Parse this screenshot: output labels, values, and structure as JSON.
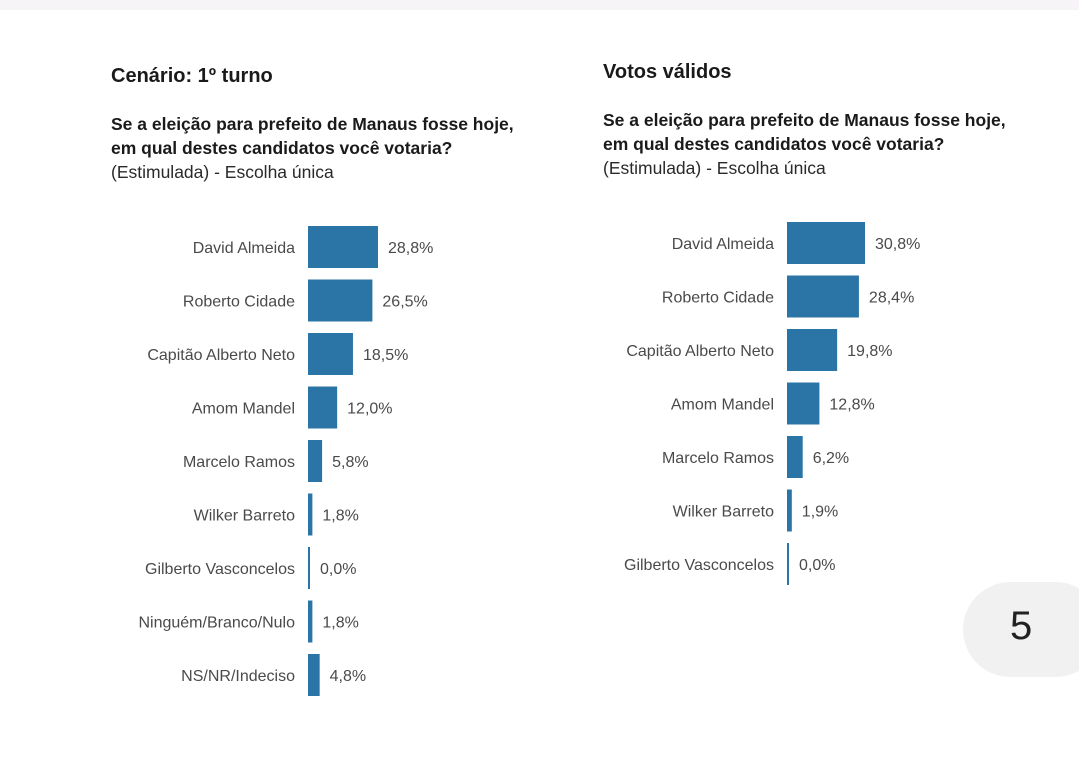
{
  "left": {
    "heading": "Cenário: 1º turno",
    "question_line1": "Se a eleição para prefeito de Manaus fosse hoje,",
    "question_line2": "em qual destes candidatos você votaria?",
    "subtitle": "(Estimulada) - Escolha única"
  },
  "right": {
    "heading": "Votos válidos",
    "question_line1": "Se a eleição para prefeito de Manaus fosse hoje,",
    "question_line2": "em qual destes candidatos você votaria?",
    "subtitle": "(Estimulada) - Escolha única"
  },
  "page_number": "5",
  "colors": {
    "bar": "#2b74a6"
  },
  "chart_data": [
    {
      "type": "bar",
      "orientation": "horizontal",
      "title": "Cenário: 1º turno",
      "categories": [
        "David Almeida",
        "Roberto Cidade",
        "Capitão Alberto Neto",
        "Amom Mandel",
        "Marcelo Ramos",
        "Wilker Barreto",
        "Gilberto Vasconcelos",
        "Ninguém/Branco/Nulo",
        "NS/NR/Indeciso"
      ],
      "values": [
        28.8,
        26.5,
        18.5,
        12.0,
        5.8,
        1.8,
        0.0,
        1.8,
        4.8
      ],
      "labels": [
        "28,8%",
        "26,5%",
        "18,5%",
        "12,0%",
        "5,8%",
        "1,8%",
        "0,0%",
        "1,8%",
        "4,8%"
      ],
      "unit": "%"
    },
    {
      "type": "bar",
      "orientation": "horizontal",
      "title": "Votos válidos",
      "categories": [
        "David Almeida",
        "Roberto Cidade",
        "Capitão Alberto Neto",
        "Amom Mandel",
        "Marcelo Ramos",
        "Wilker Barreto",
        "Gilberto Vasconcelos"
      ],
      "values": [
        30.8,
        28.4,
        19.8,
        12.8,
        6.2,
        1.9,
        0.0
      ],
      "labels": [
        "30,8%",
        "28,4%",
        "19,8%",
        "12,8%",
        "6,2%",
        "1,9%",
        "0,0%"
      ],
      "unit": "%"
    }
  ]
}
